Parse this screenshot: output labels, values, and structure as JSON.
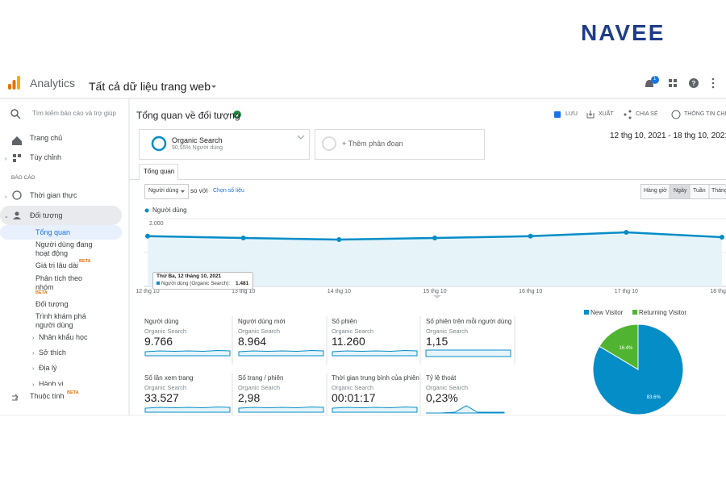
{
  "brand": "NAVEE",
  "header": {
    "app": "Analytics",
    "property": "Tất cả dữ liệu trang web",
    "notifications": "1"
  },
  "sidebar": {
    "search": "Tìm kiếm báo cáo và trợ giúp",
    "home": "Trang chủ",
    "custom": "Tùy chỉnh",
    "section": "BÁO CÁO",
    "realtime": "Thời gian thực",
    "audience": "Đối tượng",
    "audience_items": [
      {
        "label": "Tổng quan"
      },
      {
        "label": "Người dùng đang hoạt động"
      },
      {
        "label": "Giá trị lâu dài",
        "badge": "BETA"
      },
      {
        "label": "Phân tích theo nhóm",
        "badge": "BETA"
      },
      {
        "label": "Đối tượng"
      },
      {
        "label": "Trình khám phá người dùng"
      },
      {
        "label": "Nhân khẩu học"
      },
      {
        "label": "Sở thích"
      },
      {
        "label": "Địa lý"
      },
      {
        "label": "Hành vi"
      }
    ],
    "attributes": {
      "label": "Thuộc tính",
      "badge": "BETA"
    }
  },
  "main": {
    "title": "Tổng quan về đối tượng",
    "toolbar": [
      "LƯU",
      "XUẤT",
      "CHIA SẺ",
      "THÔNG TIN CHI TIẾT"
    ],
    "segment": {
      "name": "Organic Search",
      "share": "90,55% Người dùng"
    },
    "add_segment": "+ Thêm phân đoạn",
    "date_range": "12 thg 10, 2021 - 18 thg 10, 2021",
    "tab": "Tổng quan",
    "metric_select": "Người dùng",
    "compare": "so với",
    "choose_metric": "Chọn số liệu",
    "granularity": [
      "Hàng giờ",
      "Ngày",
      "Tuần",
      "Tháng"
    ]
  },
  "line_chart": {
    "type": "line",
    "legend": "Người dùng",
    "color": "#058dc7",
    "categories": [
      "12 thg 10",
      "13 thg 10",
      "14 thg 10",
      "15 thg 10",
      "16 thg 10",
      "17 thg 10",
      "18 thg 10"
    ],
    "values": [
      1481,
      1429,
      1381,
      1429,
      1481,
      1595,
      1452
    ],
    "ylim": [
      0,
      2000
    ],
    "yticks": [
      {
        "value": 1000,
        "label": "1.000"
      },
      {
        "value": 2000,
        "label": "2.000"
      }
    ],
    "grid": true,
    "tooltip": {
      "date": "Thứ Ba, 12 tháng 10, 2021",
      "series": "Người dùng (Organic Search):",
      "value": "1.481"
    }
  },
  "metrics": [
    {
      "name": "Người dùng",
      "segment": "Organic Search",
      "value": "9.766"
    },
    {
      "name": "Người dùng mới",
      "segment": "Organic Search",
      "value": "8.964"
    },
    {
      "name": "Số phiên",
      "segment": "Organic Search",
      "value": "11.260"
    },
    {
      "name": "Số phiên trên mỗi người dùng",
      "segment": "Organic Search",
      "value": "1,15"
    },
    {
      "name": "Số lần xem trang",
      "segment": "Organic Search",
      "value": "33.527"
    },
    {
      "name": "Số trang / phiên",
      "segment": "Organic Search",
      "value": "2,98"
    },
    {
      "name": "Thời gian trung bình của phiên",
      "segment": "Organic Search",
      "value": "00:01:17"
    },
    {
      "name": "Tỷ lệ thoát",
      "segment": "Organic Search",
      "value": "0,23%"
    }
  ],
  "pie_chart": {
    "type": "pie",
    "labels": [
      "New Visitor",
      "Returning Visitor"
    ],
    "values": [
      83.6,
      16.4
    ],
    "value_labels": [
      "83.6%",
      "16.4%"
    ],
    "colors": [
      "#058dc7",
      "#50b432"
    ]
  }
}
